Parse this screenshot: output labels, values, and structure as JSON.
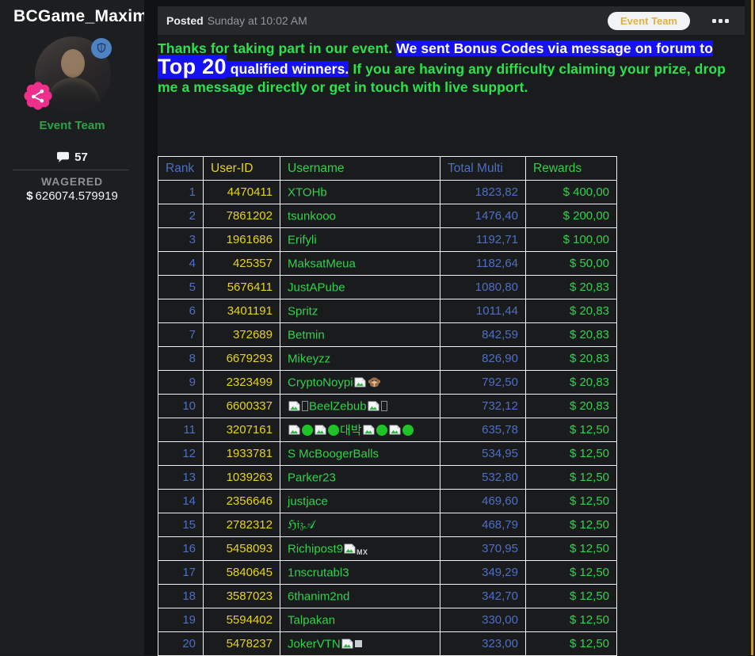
{
  "sidebar": {
    "author": "BCGame_Maxim",
    "role": "Event Team",
    "comments_count": "57",
    "wagered_label": "WAGERED",
    "wagered_currency": "$",
    "wagered_value": "626074.579919"
  },
  "header": {
    "posted_label": "Posted",
    "posted_time": "Sunday at 10:02 AM",
    "team_badge": "Event Team"
  },
  "message": {
    "green_intro": "Thanks for taking part in our event. ",
    "highlight_a": "We sent Bonus Codes via message on forum to ",
    "highlight_big": "Top 20",
    "highlight_b": " qualified winners.",
    "green_outro": " If you are having any difficulty claiming your prize, drop me a message directly or get in touch with live support."
  },
  "colors": {
    "rank_blue": "#4e6fc5",
    "id_yellow": "#e6d31f",
    "name_green": "#33d04d",
    "message_green": "#2ce14e",
    "highlight_blue": "#1511f3",
    "badge_gold": "#dfb145",
    "pink_badge": "#ee2f8c",
    "scrollbar_gold": "#c59c3c"
  },
  "table": {
    "headers": [
      "Rank",
      "User-ID",
      "Username",
      "Total Multi",
      "Rewards"
    ],
    "rows": [
      {
        "rank": "1",
        "user_id": "4470411",
        "username": [
          {
            "text": "XTOHb"
          }
        ],
        "total_multi": "1823,82",
        "reward": "$ 400,00"
      },
      {
        "rank": "2",
        "user_id": "7861202",
        "username": [
          {
            "text": "tsunkooo"
          }
        ],
        "total_multi": "1476,40",
        "reward": "$ 200,00"
      },
      {
        "rank": "3",
        "user_id": "1961686",
        "username": [
          {
            "text": "Erifyli"
          }
        ],
        "total_multi": "1192,71",
        "reward": "$ 100,00"
      },
      {
        "rank": "4",
        "user_id": "425357",
        "username": [
          {
            "text": "MaksatMeua"
          }
        ],
        "total_multi": "1182,64",
        "reward": "$ 50,00"
      },
      {
        "rank": "5",
        "user_id": "5676411",
        "username": [
          {
            "text": "JustAPube"
          }
        ],
        "total_multi": "1080,80",
        "reward": "$ 20,83"
      },
      {
        "rank": "6",
        "user_id": "3401191",
        "username": [
          {
            "text": "Spritz"
          }
        ],
        "total_multi": "1011,44",
        "reward": "$ 20,83"
      },
      {
        "rank": "7",
        "user_id": "372689",
        "username": [
          {
            "text": "Betmin"
          }
        ],
        "total_multi": "842,59",
        "reward": "$ 20,83"
      },
      {
        "rank": "8",
        "user_id": "6679293",
        "username": [
          {
            "text": "Mikeyzz"
          }
        ],
        "total_multi": "826,90",
        "reward": "$ 20,83"
      },
      {
        "rank": "9",
        "user_id": "2323499",
        "username": [
          {
            "text": "CryptoNoypi"
          },
          {
            "icon": "broken-image"
          },
          {
            "icon": "monkey"
          }
        ],
        "total_multi": "792,50",
        "reward": "$ 20,83"
      },
      {
        "rank": "10",
        "user_id": "6600337",
        "username": [
          {
            "icon": "broken-image"
          },
          {
            "icon": "tofu"
          },
          {
            "text": "BeelZebub"
          },
          {
            "icon": "broken-image"
          },
          {
            "icon": "tofu"
          }
        ],
        "total_multi": "732,12",
        "reward": "$ 20,83"
      },
      {
        "rank": "11",
        "user_id": "3207161",
        "username": [
          {
            "icon": "broken-image"
          },
          {
            "icon": "green-circle"
          },
          {
            "icon": "broken-image"
          },
          {
            "icon": "green-circle"
          },
          {
            "text": "대박"
          },
          {
            "icon": "broken-image"
          },
          {
            "icon": "green-circle"
          },
          {
            "icon": "broken-image"
          },
          {
            "icon": "green-circle"
          }
        ],
        "total_multi": "635,78",
        "reward": "$ 12,50"
      },
      {
        "rank": "12",
        "user_id": "1933781",
        "username": [
          {
            "text": "S McBoogerBalls"
          }
        ],
        "total_multi": "534,95",
        "reward": "$ 12,50"
      },
      {
        "rank": "13",
        "user_id": "1039263",
        "username": [
          {
            "text": "Parker23"
          }
        ],
        "total_multi": "532,80",
        "reward": "$ 12,50"
      },
      {
        "rank": "14",
        "user_id": "2356646",
        "username": [
          {
            "text": "justjace"
          }
        ],
        "total_multi": "469,60",
        "reward": "$ 12,50"
      },
      {
        "rank": "15",
        "user_id": "2782312",
        "username": [
          {
            "text": "ℌ𝔦𝔷𝒜"
          }
        ],
        "total_multi": "468,79",
        "reward": "$ 12,50"
      },
      {
        "rank": "16",
        "user_id": "5458093",
        "username": [
          {
            "text": "Richipost9"
          },
          {
            "icon": "broken-image"
          },
          {
            "text": "MX",
            "style": "sub"
          }
        ],
        "total_multi": "370,95",
        "reward": "$ 12,50"
      },
      {
        "rank": "17",
        "user_id": "5840645",
        "username": [
          {
            "text": "1nscrutabl3"
          }
        ],
        "total_multi": "349,29",
        "reward": "$ 12,50"
      },
      {
        "rank": "18",
        "user_id": "3587023",
        "username": [
          {
            "text": "6thanim2nd"
          }
        ],
        "total_multi": "342,70",
        "reward": "$ 12,50"
      },
      {
        "rank": "19",
        "user_id": "5594402",
        "username": [
          {
            "text": "Talpakan"
          }
        ],
        "total_multi": "330,00",
        "reward": "$ 12,50"
      },
      {
        "rank": "20",
        "user_id": "5478237",
        "username": [
          {
            "text": "JokerVTN"
          },
          {
            "icon": "broken-image"
          },
          {
            "icon": "gray-square"
          }
        ],
        "total_multi": "323,00",
        "reward": "$ 12,50"
      }
    ]
  }
}
